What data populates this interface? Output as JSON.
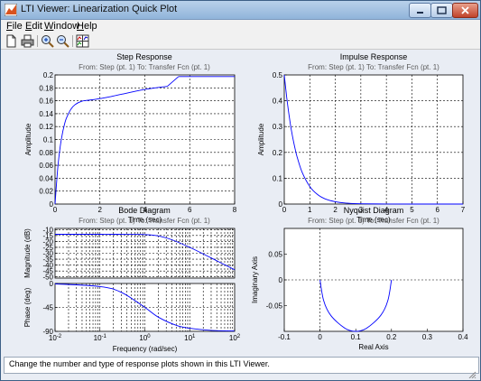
{
  "window": {
    "title": "LTI Viewer: Linearization Quick Plot",
    "buttons": {
      "minimize": "minimize-icon",
      "maximize": "maximize-icon",
      "close": "close-icon"
    }
  },
  "menubar": {
    "items": [
      {
        "label": "File",
        "underline_first": true
      },
      {
        "label": "Edit",
        "underline_first": true
      },
      {
        "label": "Window",
        "underline_first": true
      },
      {
        "label": "Help",
        "underline_first": true
      }
    ]
  },
  "toolbar": {
    "tools": [
      "new-figure-icon",
      "print-icon",
      "zoom-in-icon",
      "zoom-out-icon",
      "plot-configurations-icon"
    ]
  },
  "status": {
    "text": "Change the number and type of response plots shown in this LTI Viewer."
  },
  "colors": {
    "curve": "#0000ff",
    "grid": "#000000",
    "axes_bg": "#ffffff",
    "subtitle": "#5a5a5a",
    "title_bar": "#9ebbe0"
  },
  "chart_data": [
    {
      "name": "step",
      "type": "line",
      "title": "Step Response",
      "subtitle": "From: Step (pt. 1)  To: Transfer Fcn (pt. 1)",
      "xlabel": "Time (sec)",
      "ylabel": "Amplitude",
      "xlim": [
        0,
        8
      ],
      "ylim": [
        0,
        0.2
      ],
      "xticks": [
        0,
        2,
        4,
        6,
        8
      ],
      "yticks": [
        0,
        0.02,
        0.04,
        0.06,
        0.08,
        0.1,
        0.12,
        0.14,
        0.16,
        0.18,
        0.2
      ],
      "ytick_labels": [
        "0",
        "0.02",
        "0.04",
        "0.06",
        "0.08",
        "0.1",
        "0.12",
        "0.14",
        "0.16",
        "0.18",
        "0.2"
      ],
      "grid": true,
      "series": [
        {
          "x": [
            0,
            0.1,
            0.2,
            0.3,
            0.4,
            0.5,
            0.7,
            0.9,
            1.2,
            1.5,
            2.0,
            2.5,
            3.0,
            4.0,
            5.0
          ],
          "y": [
            0,
            0.0476,
            0.0811,
            0.1044,
            0.1209,
            0.1324,
            0.1466,
            0.1542,
            0.1593,
            0.1608,
            0.1633,
            0.1666,
            0.1704,
            0.1775,
            0.1823
          ]
        }
      ]
    },
    {
      "name": "impulse",
      "type": "line",
      "title": "Impulse Response",
      "subtitle": "From: Step (pt. 1)  To: Transfer Fcn (pt. 1)",
      "xlabel": "Time (sec)",
      "ylabel": "Amplitude",
      "xlim": [
        0,
        7
      ],
      "ylim": [
        0,
        0.5
      ],
      "xticks": [
        0,
        1,
        2,
        3,
        4,
        5,
        6,
        7
      ],
      "yticks": [
        0,
        0.1,
        0.2,
        0.3,
        0.4,
        0.5
      ],
      "ytick_labels": [
        "0",
        "0.1",
        "0.2",
        "0.3",
        "0.4",
        "0.5"
      ],
      "grid": true,
      "series": [
        {
          "x": [
            0,
            0.1,
            0.2,
            0.3,
            0.4,
            0.5,
            0.7,
            1.0,
            1.3,
            1.6,
            2.0,
            2.5,
            3.0,
            4.0,
            5.0,
            6.0,
            7.0
          ],
          "y": [
            0.5,
            0.41,
            0.335,
            0.274,
            0.225,
            0.184,
            0.123,
            0.068,
            0.037,
            0.02,
            0.009,
            0.003,
            0.001,
            0.0002,
            0,
            0,
            0
          ]
        }
      ]
    },
    {
      "name": "bode",
      "type": "line",
      "title": "Bode Diagram",
      "subtitle": "From: Step (pt. 1)  To: Transfer Fcn (pt. 1)",
      "xlabel": "Frequency  (rad/sec)",
      "xscale": "log",
      "xlim": [
        0.01,
        100
      ],
      "xtick_labels": [
        "10-2",
        "10-1",
        "100",
        "101",
        "102"
      ],
      "magnitude": {
        "ylabel": "Magnitude (dB)",
        "ylim": [
          -51,
          -9
        ],
        "yticks": [
          -10,
          -15,
          -20,
          -25,
          -30,
          -35,
          -40,
          -45,
          -50
        ],
        "ytick_labels": [
          "-10",
          "-15",
          "-20",
          "-25",
          "-30",
          "-35",
          "-40",
          "-45",
          "-50"
        ],
        "x": [
          0.01,
          0.1,
          1,
          3,
          10,
          30,
          100
        ],
        "y": [
          -14,
          -14.0,
          -14.2,
          -17,
          -25,
          -34,
          -44
        ]
      },
      "phase": {
        "ylabel": "Phase (deg)",
        "ylim": [
          -90,
          0
        ],
        "yticks": [
          0,
          -45,
          -90
        ],
        "ytick_labels": [
          "0",
          "-45",
          "-90"
        ],
        "x": [
          0.01,
          0.1,
          0.3,
          1,
          2,
          5,
          10,
          30,
          100
        ],
        "y": [
          -0.6,
          -5.7,
          -16.7,
          -45,
          -63.4,
          -78.7,
          -84.3,
          -88.1,
          -89.4
        ]
      },
      "grid": true
    },
    {
      "name": "nyquist",
      "type": "line",
      "title": "Nyquist Diagram",
      "subtitle": "From: Step (pt. 1)  To: Transfer Fcn (pt. 1)",
      "xlabel": "Real Axis",
      "ylabel": "Imaginary Axis",
      "xlim": [
        -0.1,
        0.4
      ],
      "ylim": [
        -0.1,
        0.1
      ],
      "xticks": [
        -0.1,
        0,
        0.1,
        0.2,
        0.3,
        0.4
      ],
      "xtick_labels": [
        "-0.1",
        "0",
        "0.1",
        "0.2",
        "0.3",
        "0.4"
      ],
      "yticks": [
        -0.05,
        0,
        0.05
      ],
      "ytick_labels": [
        "-0.05",
        "0",
        "0.05"
      ],
      "grid": "zero-lines",
      "series": [
        {
          "x": [
            0.2,
            0.19,
            0.17,
            0.13,
            0.1,
            0.07,
            0.03,
            0.01,
            0
          ],
          "y": [
            0,
            -0.04,
            -0.069,
            -0.094,
            -0.1,
            -0.094,
            -0.069,
            -0.04,
            0
          ]
        }
      ]
    }
  ]
}
